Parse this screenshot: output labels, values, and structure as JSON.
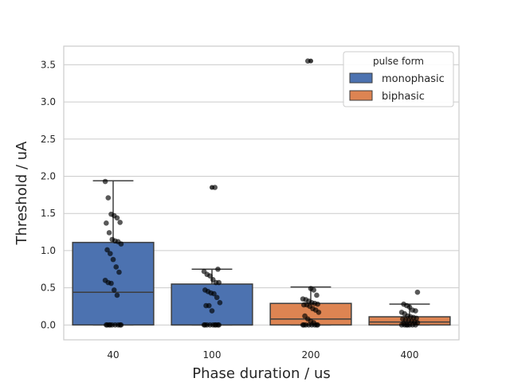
{
  "chart_data": {
    "type": "box",
    "title": "",
    "xlabel": "Phase duration / us",
    "ylabel": "Threshold / uA",
    "categories": [
      "40",
      "100",
      "200",
      "400"
    ],
    "ylim": [
      -0.2,
      3.75
    ],
    "yticks": [
      0.0,
      0.5,
      1.0,
      1.5,
      2.0,
      2.5,
      3.0,
      3.5
    ],
    "ytick_labels": [
      "0.0",
      "0.5",
      "1.0",
      "1.5",
      "2.0",
      "2.5",
      "3.0",
      "3.5"
    ],
    "grid": "horizontal",
    "legend": {
      "title": "pulse form",
      "placement": "top-right",
      "entries": [
        {
          "label": "monophasic",
          "color": "#4c72b0"
        },
        {
          "label": "biphasic",
          "color": "#dd8452"
        }
      ]
    },
    "boxes": [
      {
        "category": "40",
        "pulse_form": "monophasic",
        "color": "#4c72b0",
        "q1": 0.0,
        "median": 0.44,
        "q3": 1.11,
        "whisker_low": 0.0,
        "whisker_high": 1.94
      },
      {
        "category": "100",
        "pulse_form": "monophasic",
        "color": "#4c72b0",
        "q1": 0.0,
        "median": 0.0,
        "q3": 0.55,
        "whisker_low": 0.0,
        "whisker_high": 0.75
      },
      {
        "category": "200",
        "pulse_form": "biphasic",
        "color": "#dd8452",
        "q1": 0.0,
        "median": 0.08,
        "q3": 0.29,
        "whisker_low": 0.0,
        "whisker_high": 0.51
      },
      {
        "category": "400",
        "pulse_form": "biphasic",
        "color": "#dd8452",
        "q1": 0.0,
        "median": 0.04,
        "q3": 0.11,
        "whisker_low": 0.0,
        "whisker_high": 0.28
      }
    ],
    "outliers": [
      {
        "category": "100",
        "value": 1.85
      },
      {
        "category": "200",
        "value": 3.55
      }
    ],
    "points": [
      {
        "category": "40",
        "values": [
          1.93,
          1.71,
          1.49,
          1.47,
          1.44,
          1.38,
          1.37,
          1.24,
          1.15,
          1.13,
          1.12,
          1.09,
          1.01,
          0.96,
          0.88,
          0.78,
          0.71,
          0.6,
          0.57,
          0.56,
          0.47,
          0.4,
          0.0,
          0.0,
          0.0,
          0.0,
          0.0,
          0.0,
          0.0,
          0.0,
          0.0
        ]
      },
      {
        "category": "100",
        "values": [
          1.85,
          0.75,
          0.72,
          0.68,
          0.66,
          0.61,
          0.57,
          0.57,
          0.47,
          0.45,
          0.43,
          0.42,
          0.37,
          0.3,
          0.26,
          0.26,
          0.19,
          0.0,
          0.0,
          0.0,
          0.0,
          0.0,
          0.0,
          0.0,
          0.0,
          0.0
        ]
      },
      {
        "category": "200",
        "values": [
          3.55,
          0.49,
          0.47,
          0.4,
          0.35,
          0.34,
          0.32,
          0.3,
          0.29,
          0.28,
          0.27,
          0.27,
          0.25,
          0.22,
          0.2,
          0.17,
          0.12,
          0.08,
          0.05,
          0.03,
          0.0,
          0.0,
          0.0,
          0.0,
          0.0,
          0.0,
          0.0,
          0.0
        ]
      },
      {
        "category": "400",
        "values": [
          0.44,
          0.28,
          0.26,
          0.24,
          0.2,
          0.19,
          0.17,
          0.15,
          0.12,
          0.11,
          0.1,
          0.09,
          0.08,
          0.07,
          0.06,
          0.05,
          0.04,
          0.03,
          0.02,
          0.0,
          0.0,
          0.0,
          0.0,
          0.0,
          0.0,
          0.0
        ]
      }
    ]
  }
}
